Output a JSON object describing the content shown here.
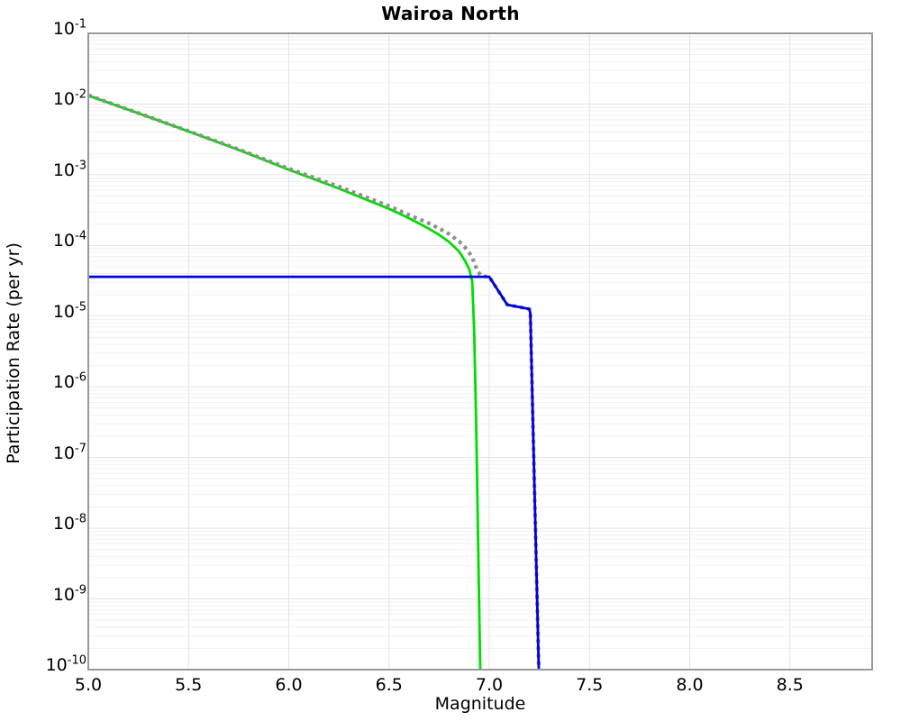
{
  "chart_data": {
    "type": "line",
    "title": "Wairoa North",
    "xlabel": "Magnitude",
    "ylabel": "Participation Rate (per yr)",
    "x_axis": {
      "min": 5.0,
      "max": 8.91,
      "ticks": [
        "5.0",
        "5.5",
        "6.0",
        "6.5",
        "7.0",
        "7.5",
        "8.0",
        "8.5"
      ]
    },
    "y_axis": {
      "scale": "log",
      "top_exponent": -1,
      "bottom_exponent": -10,
      "tick_exponents": [
        -1,
        -2,
        -3,
        -4,
        -5,
        -6,
        -7,
        -8,
        -9,
        -10
      ]
    },
    "grid": {
      "major": true,
      "minor_log": true
    },
    "legend": "none",
    "frame_color": "#999999",
    "gridline_color": "#e3e3e3",
    "minor_gridline_color": "#f0f0f0",
    "series": [
      {
        "id": "green-solid",
        "color": "#00dd00",
        "line_style": "solid",
        "width": 2.8,
        "points": [
          [
            5.0,
            0.0132
          ],
          [
            5.25,
            0.0074
          ],
          [
            5.5,
            0.0041
          ],
          [
            5.75,
            0.00225
          ],
          [
            6.0,
            0.00118
          ],
          [
            6.25,
            0.00064
          ],
          [
            6.5,
            0.00033
          ],
          [
            6.6,
            0.000243
          ],
          [
            6.7,
            0.000172
          ],
          [
            6.75,
            0.000141
          ],
          [
            6.8,
            0.000112
          ],
          [
            6.85,
            8.2e-05
          ],
          [
            6.88,
            6e-05
          ],
          [
            6.9,
            4.6e-05
          ],
          [
            6.915,
            3.1e-05
          ],
          [
            6.925,
            6e-06
          ],
          [
            6.935,
            3e-07
          ],
          [
            6.945,
            5e-09
          ],
          [
            6.955,
            1e-10
          ]
        ]
      },
      {
        "id": "gray-dotted-total",
        "color": "#8f8f8f",
        "line_style": "dotted",
        "width": 4.2,
        "points": [
          [
            5.0,
            0.0133
          ],
          [
            5.25,
            0.00745
          ],
          [
            5.5,
            0.00414
          ],
          [
            5.75,
            0.00229
          ],
          [
            6.0,
            0.00122
          ],
          [
            6.25,
            0.00068
          ],
          [
            6.5,
            0.00036
          ],
          [
            6.6,
            0.00027
          ],
          [
            6.7,
            0.000205
          ],
          [
            6.75,
            0.000174
          ],
          [
            6.8,
            0.000145
          ],
          [
            6.85,
            0.000114
          ],
          [
            6.88,
            9.3e-05
          ],
          [
            6.9,
            7.9e-05
          ],
          [
            6.92,
            6.2e-05
          ],
          [
            6.93,
            5.3e-05
          ],
          [
            6.94,
            4.4e-05
          ],
          [
            6.96,
            3.7e-05
          ],
          [
            7.0,
            3.6e-05
          ],
          [
            7.09,
            1.45e-05
          ],
          [
            7.2,
            1.26e-05
          ],
          [
            7.205,
            1.1e-05
          ],
          [
            7.247,
            1e-10
          ]
        ]
      },
      {
        "id": "blue-solid",
        "color": "#0000dd",
        "line_style": "solid",
        "width": 2.8,
        "points": [
          [
            5.0,
            3.6e-05
          ],
          [
            7.0,
            3.6e-05
          ],
          [
            7.09,
            1.45e-05
          ],
          [
            7.2,
            1.26e-05
          ],
          [
            7.205,
            1.1e-05
          ],
          [
            7.247,
            1e-10
          ]
        ]
      }
    ]
  }
}
